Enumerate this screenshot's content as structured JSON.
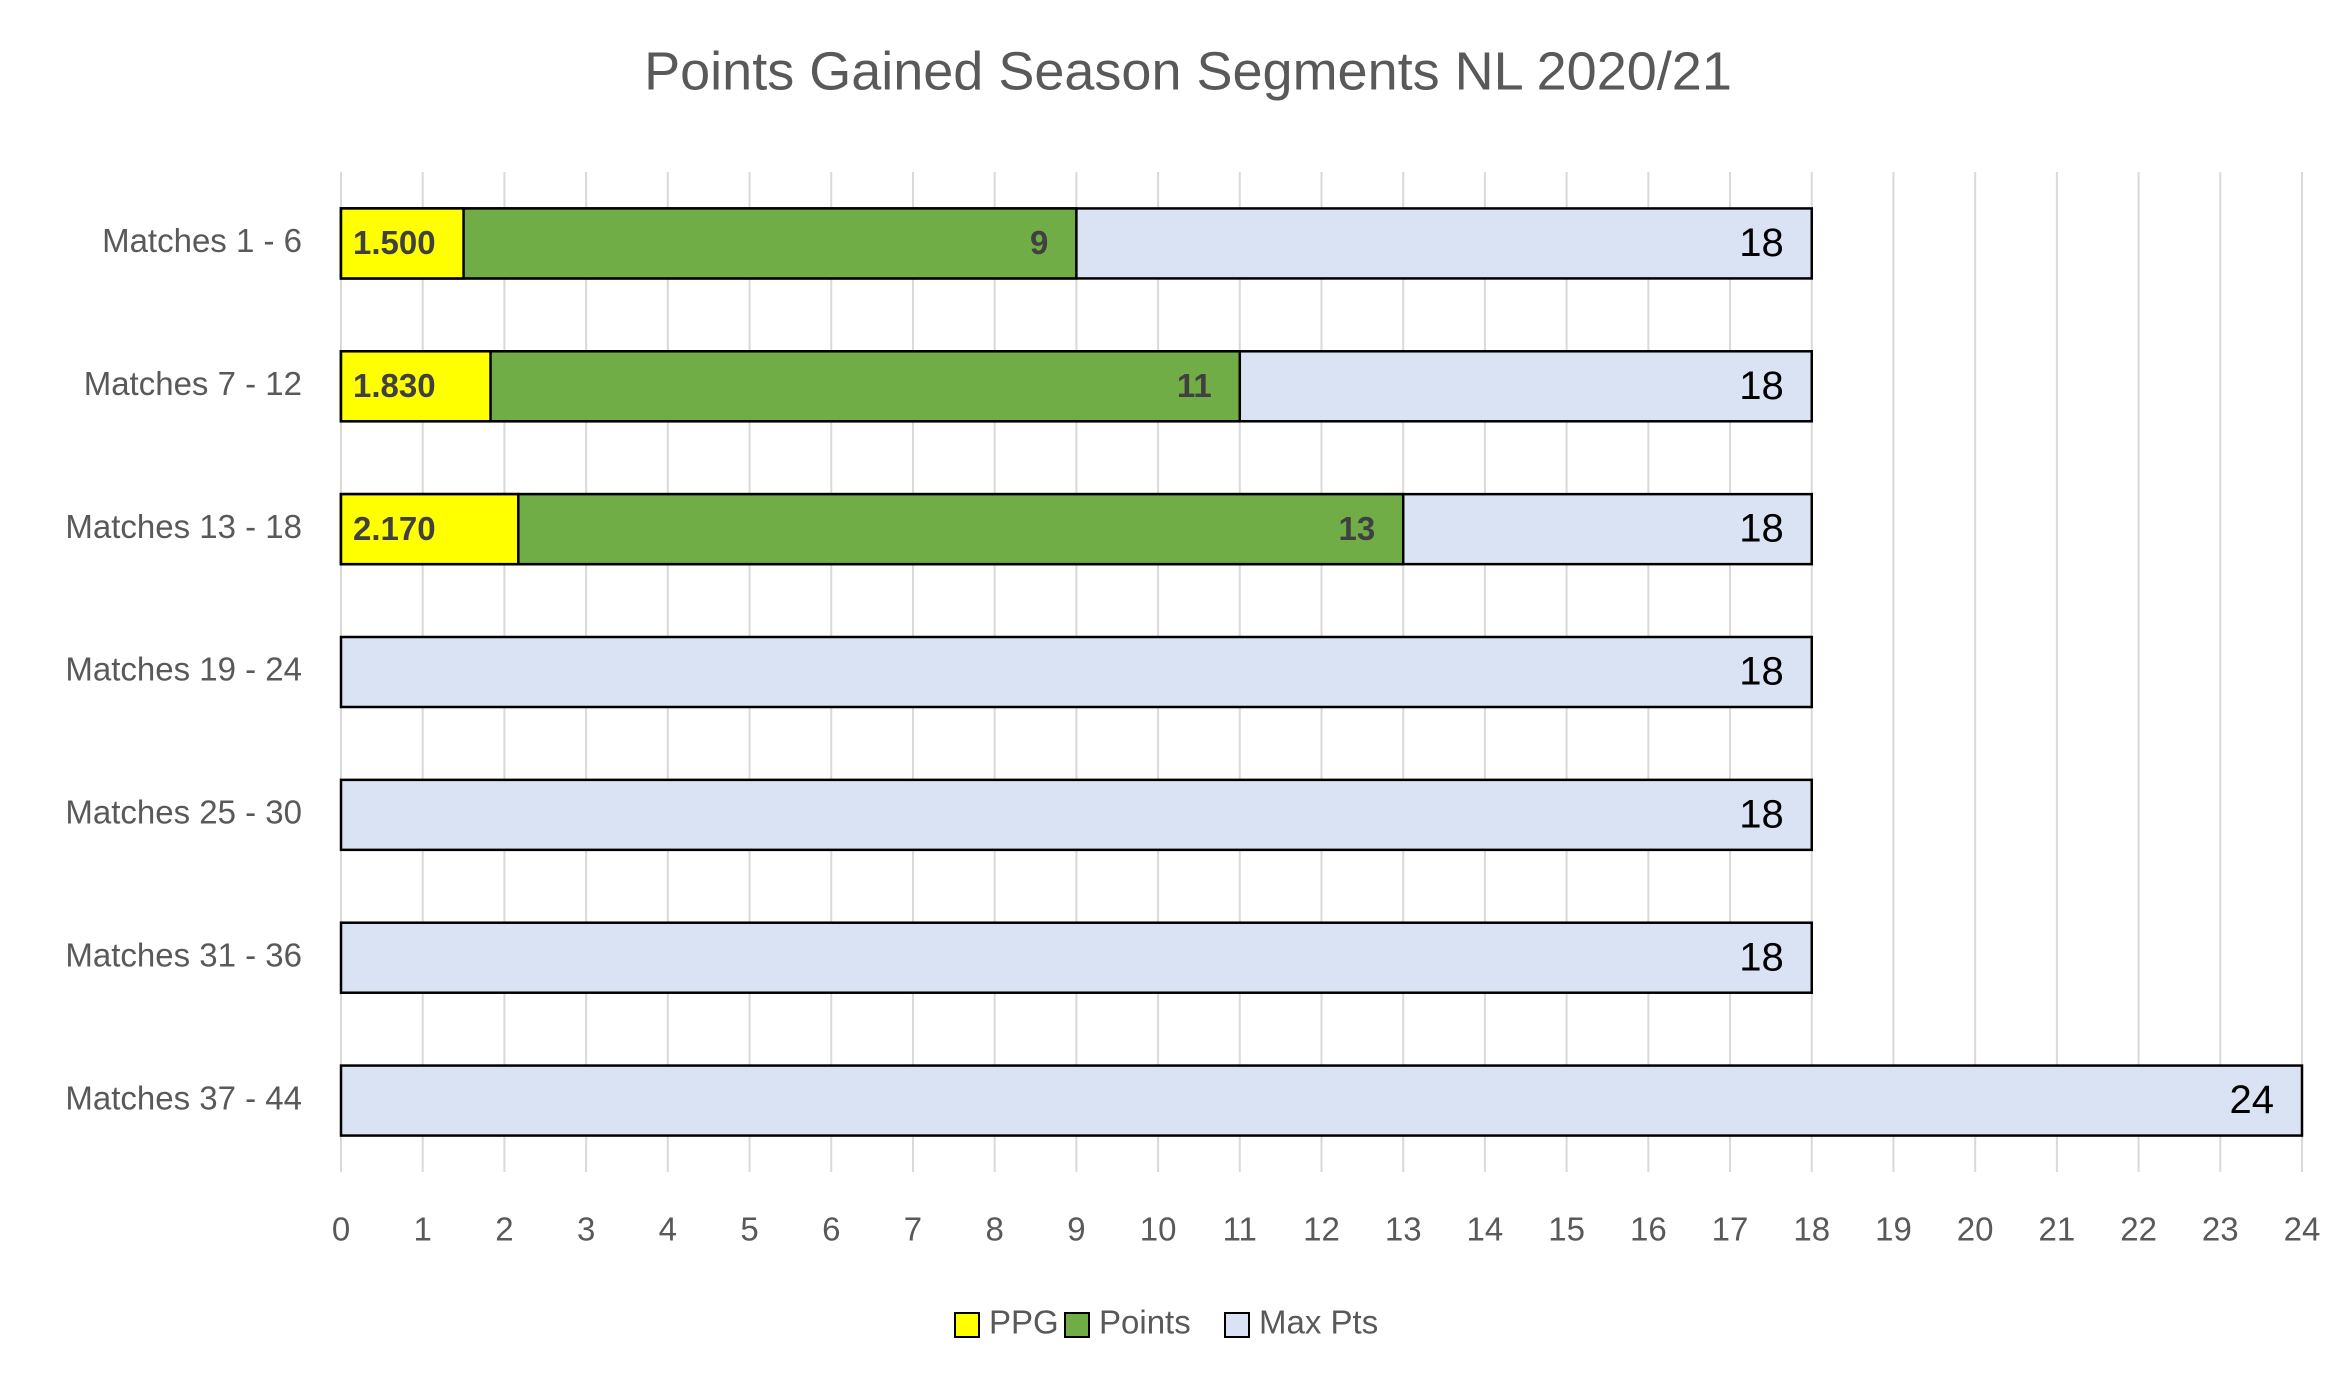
{
  "chart_data": {
    "type": "bar",
    "orientation": "horizontal",
    "bar_mode": "overlap",
    "title": "Points Gained Season Segments NL 2020/21",
    "categories": [
      "Matches 1 - 6",
      "Matches 7 - 12",
      "Matches 13 - 18",
      "Matches 19 - 24",
      "Matches 25 - 30",
      "Matches 31 - 36",
      "Matches 37 - 44"
    ],
    "series": [
      {
        "name": "PPG",
        "color": "#ffff00",
        "values": [
          1.5,
          1.83,
          2.17,
          null,
          null,
          null,
          null
        ],
        "value_labels": [
          "1.500",
          "1.830",
          "2.170",
          null,
          null,
          null,
          null
        ]
      },
      {
        "name": "Points",
        "color": "#70ad47",
        "values": [
          9,
          11,
          13,
          null,
          null,
          null,
          null
        ]
      },
      {
        "name": "Max Pts",
        "color": "#dae3f3",
        "values": [
          18,
          18,
          18,
          18,
          18,
          18,
          24
        ]
      }
    ],
    "xlim": [
      0,
      24
    ],
    "xticks": [
      0,
      1,
      2,
      3,
      4,
      5,
      6,
      7,
      8,
      9,
      10,
      11,
      12,
      13,
      14,
      15,
      16,
      17,
      18,
      19,
      20,
      21,
      22,
      23,
      24
    ],
    "grid": true,
    "legend": "bottom"
  }
}
